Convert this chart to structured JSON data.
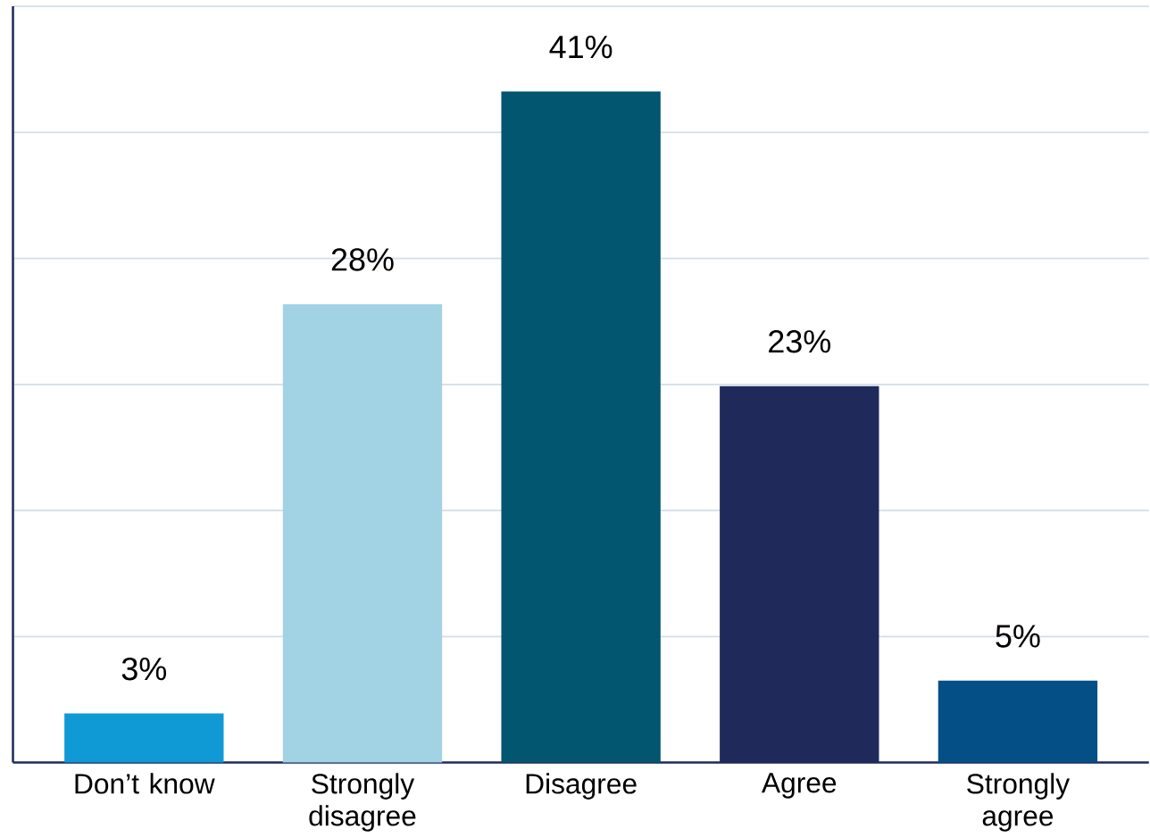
{
  "chart_data": {
    "type": "bar",
    "categories": [
      "Don’t know",
      "Strongly disagree",
      "Disagree",
      "Agree",
      "Strongly agree"
    ],
    "values": [
      3,
      28,
      41,
      23,
      5
    ],
    "colors": [
      "#0f9ad6",
      "#a1d3e4",
      "#025670",
      "#1f2a5b",
      "#044f86"
    ],
    "value_labels": [
      "3%",
      "28%",
      "41%",
      "23%",
      "5%"
    ],
    "ylim": [
      0,
      46.2
    ],
    "yticks": [
      {
        "value": 7.7,
        "label": null
      },
      {
        "value": 15.4,
        "label": null
      },
      {
        "value": 23.1,
        "label": null
      },
      {
        "value": 30.8,
        "label": null
      },
      {
        "value": 38.5,
        "label": null
      },
      {
        "value": 46.2,
        "label": null
      }
    ],
    "grid": "y",
    "tick_labels": "x"
  }
}
